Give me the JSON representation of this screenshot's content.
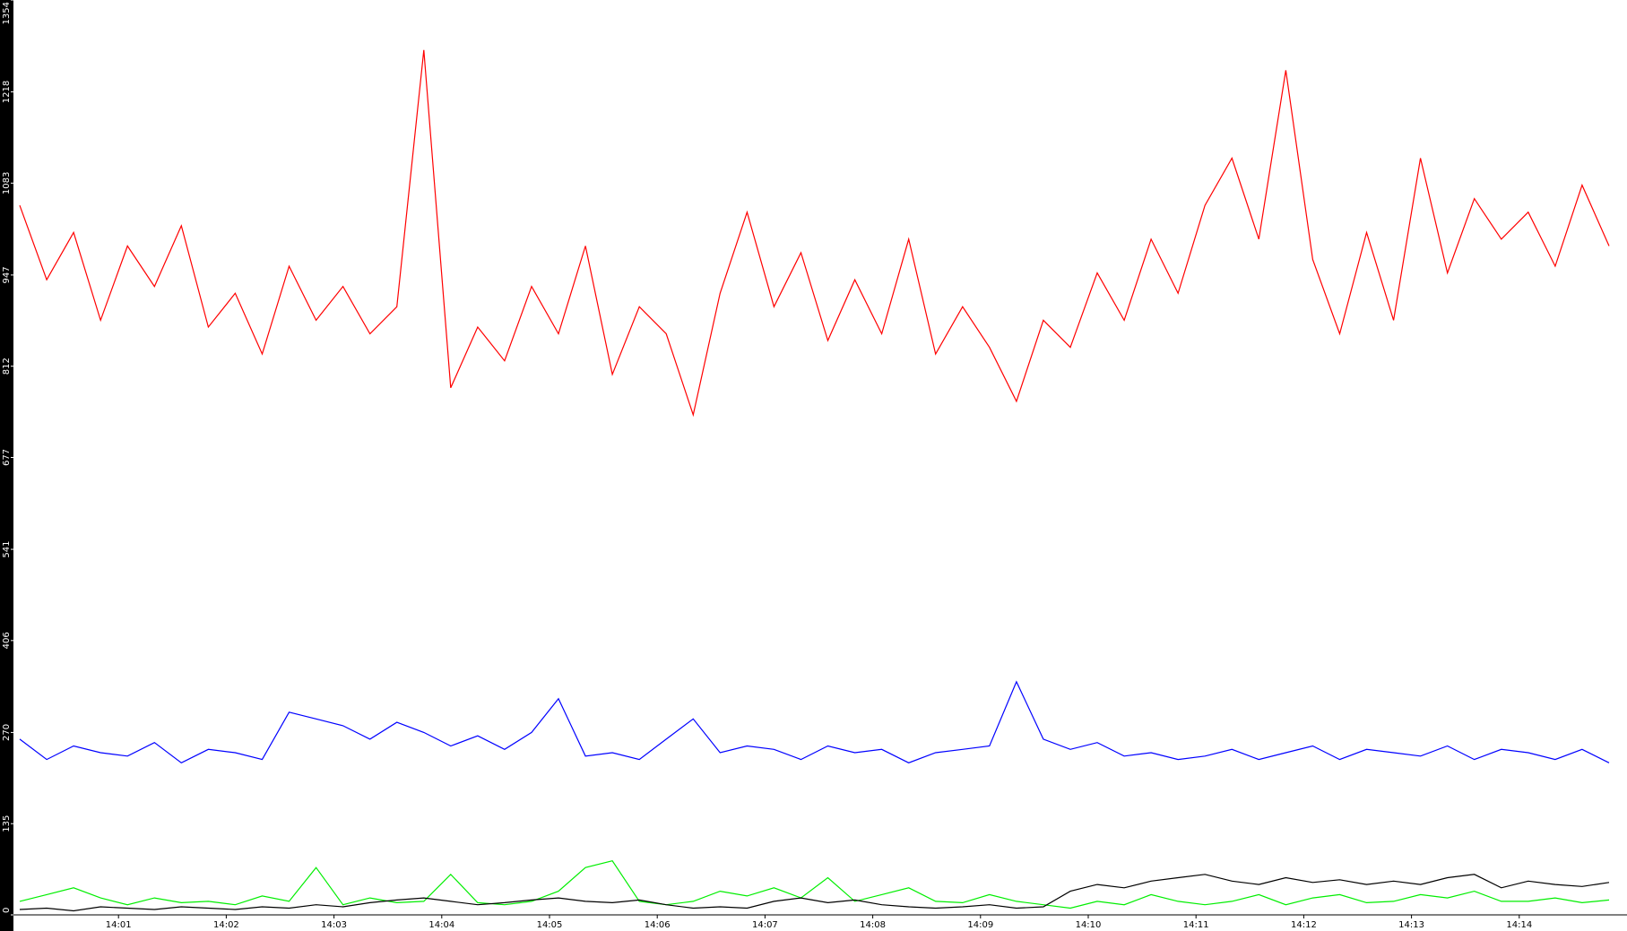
{
  "chart_data": {
    "type": "line",
    "x": [
      "14:00:05",
      "14:00:20",
      "14:00:35",
      "14:00:50",
      "14:01:05",
      "14:01:20",
      "14:01:35",
      "14:01:50",
      "14:02:05",
      "14:02:20",
      "14:02:35",
      "14:02:50",
      "14:03:05",
      "14:03:20",
      "14:03:35",
      "14:03:50",
      "14:04:05",
      "14:04:20",
      "14:04:35",
      "14:04:50",
      "14:05:05",
      "14:05:20",
      "14:05:35",
      "14:05:50",
      "14:06:05",
      "14:06:20",
      "14:06:35",
      "14:06:50",
      "14:07:05",
      "14:07:20",
      "14:07:35",
      "14:07:50",
      "14:08:05",
      "14:08:20",
      "14:08:35",
      "14:08:50",
      "14:09:05",
      "14:09:20",
      "14:09:35",
      "14:09:50",
      "14:10:05",
      "14:10:20",
      "14:10:35",
      "14:10:50",
      "14:11:05",
      "14:11:20",
      "14:11:35",
      "14:11:50",
      "14:12:05",
      "14:12:20",
      "14:12:35",
      "14:12:50",
      "14:13:05",
      "14:13:20",
      "14:13:35",
      "14:13:50",
      "14:14:05",
      "14:14:20",
      "14:14:35",
      "14:14:50"
    ],
    "series": [
      {
        "color": "#ff0000",
        "values": [
          1050,
          940,
          1010,
          880,
          990,
          930,
          1020,
          870,
          920,
          830,
          960,
          880,
          930,
          860,
          900,
          1280,
          780,
          870,
          820,
          930,
          860,
          990,
          800,
          900,
          860,
          740,
          920,
          1040,
          900,
          980,
          850,
          940,
          860,
          1000,
          830,
          900,
          840,
          760,
          880,
          840,
          950,
          880,
          1000,
          920,
          1050,
          1120,
          1000,
          1250,
          970,
          860,
          1010,
          880,
          1120,
          950,
          1060,
          1000,
          1040,
          960,
          1080,
          990
        ]
      },
      {
        "color": "#0000ff",
        "values": [
          260,
          230,
          250,
          240,
          235,
          255,
          225,
          245,
          240,
          230,
          300,
          290,
          280,
          260,
          285,
          270,
          250,
          265,
          245,
          270,
          320,
          235,
          240,
          230,
          260,
          290,
          240,
          250,
          245,
          230,
          250,
          240,
          245,
          225,
          240,
          245,
          250,
          345,
          260,
          245,
          255,
          235,
          240,
          230,
          235,
          245,
          230,
          240,
          250,
          230,
          245,
          240,
          235,
          250,
          230,
          245,
          240,
          230,
          245,
          225
        ]
      },
      {
        "color": "#00ee00",
        "values": [
          20,
          30,
          40,
          25,
          15,
          25,
          18,
          20,
          15,
          28,
          20,
          70,
          15,
          25,
          18,
          20,
          60,
          18,
          15,
          20,
          35,
          70,
          80,
          20,
          15,
          20,
          35,
          28,
          40,
          25,
          55,
          20,
          30,
          40,
          20,
          18,
          30,
          20,
          15,
          10,
          20,
          15,
          30,
          20,
          15,
          20,
          30,
          15,
          25,
          30,
          18,
          20,
          30,
          25,
          35,
          20,
          20,
          25,
          18,
          22
        ]
      },
      {
        "color": "#000000",
        "values": [
          8,
          10,
          6,
          12,
          10,
          8,
          12,
          10,
          8,
          12,
          10,
          15,
          12,
          18,
          22,
          25,
          20,
          15,
          18,
          22,
          25,
          20,
          18,
          22,
          15,
          10,
          12,
          10,
          20,
          25,
          18,
          22,
          15,
          12,
          10,
          12,
          15,
          10,
          12,
          35,
          45,
          40,
          50,
          55,
          60,
          50,
          45,
          55,
          48,
          52,
          45,
          50,
          45,
          55,
          60,
          40,
          50,
          45,
          42,
          48
        ]
      }
    ],
    "xlim": [
      "14:00:02",
      "14:15:00"
    ],
    "xticks": [
      "14:01",
      "14:02",
      "14:03",
      "14:04",
      "14:05",
      "14:06",
      "14:07",
      "14:08",
      "14:09",
      "14:10",
      "14:11",
      "14:12",
      "14:13",
      "14:14"
    ],
    "ylim": [
      0,
      1354
    ],
    "yticks": [
      0,
      135,
      270,
      406,
      541,
      677,
      812,
      947,
      1083,
      1218,
      1354
    ]
  }
}
